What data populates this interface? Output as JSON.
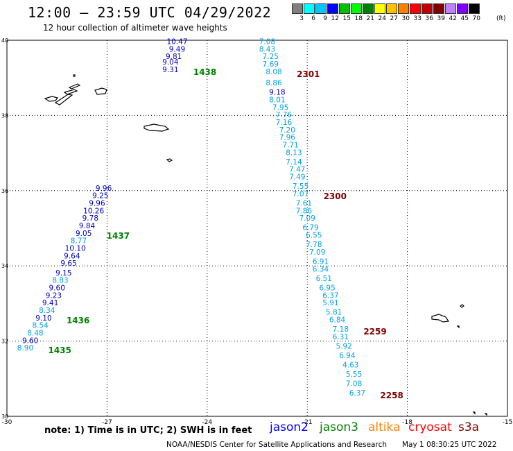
{
  "title": "12:00 — 23:59 UTC 04/29/2022",
  "subtitle": "12 hour collection of altimeter wave heights",
  "colorbar": {
    "unit": "(ft)",
    "colors": [
      "#808080",
      "#00ffff",
      "#00c8ff",
      "#0000ff",
      "#00c000",
      "#00ff00",
      "#008000",
      "#ffff00",
      "#ffc000",
      "#ff8000",
      "#ff0000",
      "#c00000",
      "#800000",
      "#c080ff",
      "#8000ff",
      "#000000"
    ],
    "labels": [
      "",
      "3",
      "6",
      "9",
      "12",
      "15",
      "18",
      "21",
      "24",
      "27",
      "30",
      "33",
      "36",
      "39",
      "42",
      "45",
      "70"
    ]
  },
  "map": {
    "lon_range": [
      -30,
      -15
    ],
    "lat_range": [
      30,
      40
    ],
    "x_ticks": [
      "-30",
      "-27",
      "-24",
      "-21",
      "-18",
      "-15"
    ],
    "y_ticks": [
      "40",
      "38",
      "36",
      "34",
      "32",
      "30"
    ]
  },
  "chart_data": {
    "type": "scatter",
    "units": "ft",
    "tracks": [
      {
        "satellite": "jason3",
        "time_label": "1438",
        "label_color": "#008000",
        "points": [
          {
            "lon": -24.9,
            "lat": 39.9,
            "value": "10.47",
            "color": "#0000c8"
          },
          {
            "lon": -24.9,
            "lat": 39.7,
            "value": "9.49",
            "color": "#0000c8"
          },
          {
            "lon": -25.0,
            "lat": 39.5,
            "value": "9.81",
            "color": "#0000c8"
          },
          {
            "lon": -25.1,
            "lat": 39.35,
            "value": "9.04",
            "color": "#0000c8"
          },
          {
            "lon": -25.1,
            "lat": 39.15,
            "value": "9.31",
            "color": "#0000c8"
          }
        ]
      },
      {
        "satellite": "cryosat",
        "time_label": "2301",
        "label_color": "#800000",
        "points": [
          {
            "lon": -22.2,
            "lat": 39.9,
            "value": "7.08",
            "color": "#00a0e6"
          },
          {
            "lon": -22.2,
            "lat": 39.7,
            "value": "8.43",
            "color": "#00a0e6"
          },
          {
            "lon": -22.1,
            "lat": 39.5,
            "value": "7.25",
            "color": "#00a0e6"
          },
          {
            "lon": -22.1,
            "lat": 39.3,
            "value": "7.69",
            "color": "#00a0e6"
          },
          {
            "lon": -22.0,
            "lat": 39.1,
            "value": "8.08",
            "color": "#00a0e6"
          },
          {
            "lon": -22.0,
            "lat": 38.8,
            "value": "8.86",
            "color": "#00a0e6"
          },
          {
            "lon": -21.9,
            "lat": 38.55,
            "value": "9.18",
            "color": "#0000c8"
          },
          {
            "lon": -21.9,
            "lat": 38.35,
            "value": "8.01",
            "color": "#00a0e6"
          },
          {
            "lon": -21.8,
            "lat": 38.15,
            "value": "7.95",
            "color": "#00a0e6"
          }
        ]
      },
      {
        "satellite": "cryosat",
        "time_label": "2300",
        "label_color": "#800000",
        "points": [
          {
            "lon": -21.7,
            "lat": 37.95,
            "value": "7.76",
            "color": "#00a0e6"
          },
          {
            "lon": -21.7,
            "lat": 37.75,
            "value": "7.16",
            "color": "#00a0e6"
          },
          {
            "lon": -21.6,
            "lat": 37.55,
            "value": "7.20",
            "color": "#00a0e6"
          },
          {
            "lon": -21.6,
            "lat": 37.35,
            "value": "7.96",
            "color": "#00a0e6"
          },
          {
            "lon": -21.5,
            "lat": 37.15,
            "value": "7.71",
            "color": "#00a0e6"
          },
          {
            "lon": -21.4,
            "lat": 36.95,
            "value": "8.13",
            "color": "#00a0e6"
          },
          {
            "lon": -21.4,
            "lat": 36.7,
            "value": "7.14",
            "color": "#00a0e6"
          },
          {
            "lon": -21.3,
            "lat": 36.5,
            "value": "7.47",
            "color": "#00a0e6"
          },
          {
            "lon": -21.3,
            "lat": 36.3,
            "value": "7.49",
            "color": "#00a0e6"
          },
          {
            "lon": -21.2,
            "lat": 36.05,
            "value": "7.55",
            "color": "#00a0e6"
          },
          {
            "lon": -21.2,
            "lat": 35.85,
            "value": "7.07",
            "color": "#00a0e6"
          },
          {
            "lon": -21.1,
            "lat": 35.6,
            "value": "7.61",
            "color": "#00a0e6"
          },
          {
            "lon": -21.1,
            "lat": 35.4,
            "value": "7.86",
            "color": "#00a0e6"
          },
          {
            "lon": -21.0,
            "lat": 35.2,
            "value": "7.09",
            "color": "#00a0e6"
          },
          {
            "lon": -20.9,
            "lat": 34.95,
            "value": "6.79",
            "color": "#00a0e6"
          },
          {
            "lon": -20.8,
            "lat": 34.75,
            "value": "6.55",
            "color": "#00a0e6"
          },
          {
            "lon": -20.8,
            "lat": 34.5,
            "value": "7.78",
            "color": "#00a0e6"
          },
          {
            "lon": -20.7,
            "lat": 34.3,
            "value": "7.09",
            "color": "#00a0e6"
          },
          {
            "lon": -20.6,
            "lat": 34.05,
            "value": "6.91",
            "color": "#00a0e6"
          },
          {
            "lon": -20.6,
            "lat": 33.85,
            "value": "6.34",
            "color": "#00a0e6"
          }
        ]
      },
      {
        "satellite": "cryosat",
        "time_label": "2259",
        "label_color": "#800000",
        "points": [
          {
            "lon": -20.5,
            "lat": 33.6,
            "value": "6.51",
            "color": "#00a0e6"
          },
          {
            "lon": -20.4,
            "lat": 33.35,
            "value": "6.95",
            "color": "#00a0e6"
          },
          {
            "lon": -20.3,
            "lat": 33.15,
            "value": "6.37",
            "color": "#00a0e6"
          },
          {
            "lon": -20.3,
            "lat": 32.95,
            "value": "5.91",
            "color": "#00a0e6"
          },
          {
            "lon": -20.2,
            "lat": 32.7,
            "value": "5.81",
            "color": "#00a0e6"
          },
          {
            "lon": -20.1,
            "lat": 32.5,
            "value": "6.84",
            "color": "#00a0e6"
          },
          {
            "lon": -20.0,
            "lat": 32.25,
            "value": "7.18",
            "color": "#00a0e6"
          },
          {
            "lon": -20.0,
            "lat": 32.05,
            "value": "6.31",
            "color": "#00a0e6"
          },
          {
            "lon": -19.9,
            "lat": 31.8,
            "value": "5.92",
            "color": "#00a0e6"
          },
          {
            "lon": -19.8,
            "lat": 31.55,
            "value": "6.94",
            "color": "#00a0e6"
          },
          {
            "lon": -19.7,
            "lat": 31.3,
            "value": "4.63",
            "color": "#00a0e6"
          },
          {
            "lon": -19.6,
            "lat": 31.05,
            "value": "5.55",
            "color": "#00a0e6"
          }
        ]
      },
      {
        "satellite": "cryosat",
        "time_label": "2258",
        "label_color": "#800000",
        "points": [
          {
            "lon": -19.6,
            "lat": 30.8,
            "value": "7.08",
            "color": "#00a0e6"
          },
          {
            "lon": -19.5,
            "lat": 30.55,
            "value": "6.37",
            "color": "#00a0e6"
          }
        ]
      },
      {
        "satellite": "jason3",
        "time_label": "1437",
        "label_color": "#008000",
        "points": [
          {
            "lon": -27.1,
            "lat": 36.0,
            "value": "9.96",
            "color": "#0000c8"
          },
          {
            "lon": -27.2,
            "lat": 35.8,
            "value": "9.25",
            "color": "#0000c8"
          },
          {
            "lon": -27.3,
            "lat": 35.6,
            "value": "9.96",
            "color": "#0000c8"
          },
          {
            "lon": -27.4,
            "lat": 35.4,
            "value": "10.26",
            "color": "#0000c8"
          },
          {
            "lon": -27.5,
            "lat": 35.2,
            "value": "9.78",
            "color": "#0000c8"
          },
          {
            "lon": -27.6,
            "lat": 35.0,
            "value": "9.84",
            "color": "#0000c8"
          },
          {
            "lon": -27.7,
            "lat": 34.8,
            "value": "9.05",
            "color": "#0000c8"
          },
          {
            "lon": -27.85,
            "lat": 34.6,
            "value": "8.77",
            "color": "#00a0e6"
          },
          {
            "lon": -27.95,
            "lat": 34.4,
            "value": "10.10",
            "color": "#0000c8"
          },
          {
            "lon": -28.05,
            "lat": 34.2,
            "value": "9.64",
            "color": "#0000c8"
          },
          {
            "lon": -28.15,
            "lat": 34.0,
            "value": "9.65",
            "color": "#0000c8"
          },
          {
            "lon": -28.3,
            "lat": 33.75,
            "value": "9.15",
            "color": "#0000c8"
          },
          {
            "lon": -28.4,
            "lat": 33.55,
            "value": "8.83",
            "color": "#00a0e6"
          }
        ]
      },
      {
        "satellite": "jason3",
        "time_label": "1436",
        "label_color": "#008000",
        "points": [
          {
            "lon": -28.5,
            "lat": 33.35,
            "value": "9.60",
            "color": "#0000c8"
          },
          {
            "lon": -28.6,
            "lat": 33.15,
            "value": "9.23",
            "color": "#0000c8"
          },
          {
            "lon": -28.7,
            "lat": 32.95,
            "value": "9.41",
            "color": "#0000c8"
          },
          {
            "lon": -28.8,
            "lat": 32.75,
            "value": "8.34",
            "color": "#00a0e6"
          },
          {
            "lon": -28.9,
            "lat": 32.55,
            "value": "9.10",
            "color": "#0000c8"
          },
          {
            "lon": -29.0,
            "lat": 32.35,
            "value": "8.54",
            "color": "#00a0e6"
          },
          {
            "lon": -29.15,
            "lat": 32.15,
            "value": "8.48",
            "color": "#00a0e6"
          },
          {
            "lon": -29.3,
            "lat": 31.95,
            "value": "9.60",
            "color": "#0000c8"
          }
        ]
      },
      {
        "satellite": "jason3",
        "time_label": "1435",
        "label_color": "#008000",
        "points": [
          {
            "lon": -29.45,
            "lat": 31.75,
            "value": "8.90",
            "color": "#00a0e6"
          }
        ]
      }
    ]
  },
  "footer": {
    "note": "note:  1) Time is in UTC; 2) SWH is in feet",
    "legend": [
      {
        "name": "jason2",
        "color": "#0000ff"
      },
      {
        "name": "jason3",
        "color": "#008000"
      },
      {
        "name": "altika",
        "color": "#ff8000"
      },
      {
        "name": "cryosat",
        "color": "#ff0000"
      },
      {
        "name": "s3a",
        "color": "#800000"
      }
    ],
    "credit": "NOAA/NESDIS Center for Satellite Applications and Research",
    "timestamp": "May  1 08:30:25 UTC 2022"
  }
}
